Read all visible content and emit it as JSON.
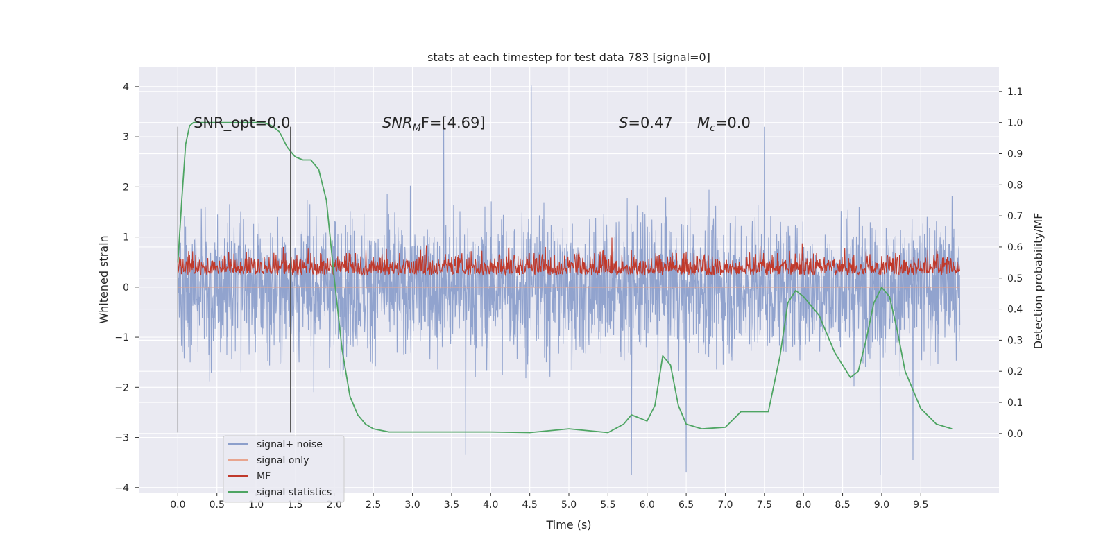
{
  "chart_data": {
    "type": "line",
    "title": "stats at each timestep for test data 783 [signal=0]",
    "xlabel": "Time (s)",
    "ylabel": "Whitened strain",
    "y2label": "Detection probability/MF",
    "xlim": [
      -0.5,
      10.5
    ],
    "ylim": [
      -4.1,
      4.4
    ],
    "y2lim": [
      -0.19,
      1.18
    ],
    "x_ticks": [
      "0.0",
      "0.5",
      "1.0",
      "1.5",
      "2.0",
      "2.5",
      "3.0",
      "3.5",
      "4.0",
      "4.5",
      "5.0",
      "5.5",
      "6.0",
      "6.5",
      "7.0",
      "7.5",
      "8.0",
      "8.5",
      "9.0",
      "9.5"
    ],
    "y_ticks": [
      "4",
      "3",
      "2",
      "1",
      "0",
      "−1",
      "−2",
      "−3",
      "−4"
    ],
    "y2_ticks": [
      "1.1",
      "1.0",
      "0.9",
      "0.8",
      "0.7",
      "0.6",
      "0.5",
      "0.4",
      "0.3",
      "0.2",
      "0.1",
      "0.0"
    ],
    "grid": true,
    "legend_position": "lower-left",
    "annotations": {
      "snr_opt": "SNR_opt=0.0",
      "snr_mf_main": "SNR",
      "snr_mf_sub": "M",
      "snr_mf_rest": "F=[4.69]",
      "s_main": "S",
      "s_rest": "=0.47",
      "mc_main": "M",
      "mc_sub": "c",
      "mc_rest": "=0.0"
    },
    "vlines": [
      0.0,
      1.44
    ],
    "series": [
      {
        "name": "signal+ noise",
        "color": "#8c9fcb",
        "axis": "left",
        "kind": "noise",
        "x_range": [
          0.0,
          10.0
        ],
        "amplitude_approx": 2.2,
        "peaks": [
          [
            4.52,
            4.02
          ],
          [
            3.68,
            -3.35
          ],
          [
            5.8,
            -3.75
          ],
          [
            6.5,
            -3.7
          ],
          [
            8.98,
            -3.75
          ],
          [
            9.4,
            -3.45
          ],
          [
            3.4,
            3.2
          ],
          [
            7.5,
            3.2
          ]
        ]
      },
      {
        "name": "signal only",
        "color": "#e8a58f",
        "axis": "left",
        "x": [
          0.0,
          10.0
        ],
        "values": [
          0.0,
          0.0
        ]
      },
      {
        "name": "MF",
        "color": "#c0392b",
        "axis": "right",
        "kind": "noise",
        "x_range": [
          0.0,
          10.0
        ],
        "center": 0.52,
        "amplitude_approx": 0.06,
        "peaks": [
          [
            5.55,
            0.63
          ],
          [
            4.7,
            0.6
          ],
          [
            1.35,
            0.6
          ],
          [
            0.0,
            0.56
          ]
        ]
      },
      {
        "name": "signal statistics",
        "color": "#4ea563",
        "axis": "right",
        "x": [
          0.0,
          0.05,
          0.1,
          0.15,
          0.2,
          0.4,
          0.6,
          0.8,
          1.0,
          1.1,
          1.2,
          1.3,
          1.4,
          1.5,
          1.6,
          1.7,
          1.8,
          1.9,
          2.0,
          2.1,
          2.2,
          2.3,
          2.4,
          2.5,
          2.7,
          3.0,
          3.5,
          4.0,
          4.5,
          5.0,
          5.5,
          5.7,
          5.8,
          6.0,
          6.1,
          6.2,
          6.3,
          6.4,
          6.5,
          6.7,
          7.0,
          7.2,
          7.4,
          7.55,
          7.7,
          7.8,
          7.9,
          8.0,
          8.2,
          8.4,
          8.6,
          8.7,
          8.8,
          8.9,
          9.0,
          9.1,
          9.2,
          9.3,
          9.5,
          9.7,
          9.9
        ],
        "values": [
          0.55,
          0.75,
          0.93,
          0.99,
          1.0,
          1.0,
          1.0,
          1.0,
          1.0,
          1.0,
          0.99,
          0.97,
          0.92,
          0.89,
          0.88,
          0.88,
          0.85,
          0.75,
          0.5,
          0.27,
          0.12,
          0.06,
          0.03,
          0.015,
          0.005,
          0.005,
          0.005,
          0.005,
          0.003,
          0.015,
          0.003,
          0.03,
          0.06,
          0.04,
          0.09,
          0.25,
          0.22,
          0.09,
          0.03,
          0.015,
          0.02,
          0.07,
          0.07,
          0.07,
          0.25,
          0.42,
          0.46,
          0.44,
          0.38,
          0.26,
          0.18,
          0.2,
          0.3,
          0.42,
          0.47,
          0.44,
          0.33,
          0.2,
          0.08,
          0.03,
          0.015
        ]
      }
    ]
  }
}
